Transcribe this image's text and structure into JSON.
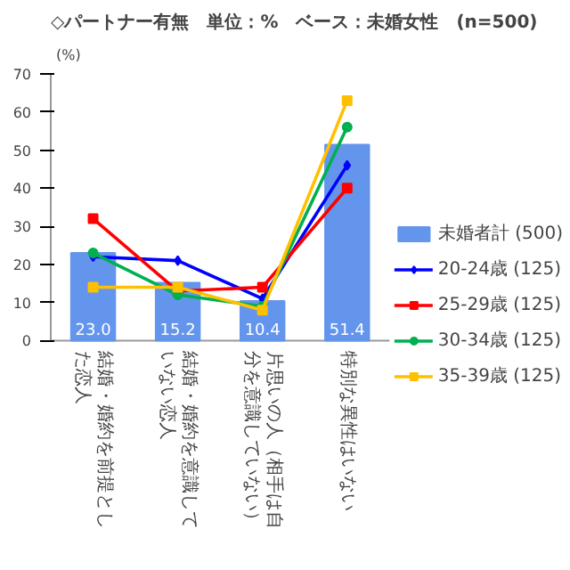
{
  "chart_data": {
    "type": "bar",
    "title": "◇パートナー有無　単位：%　ベース：未婚女性　(n=500)",
    "ylabel": "(%)",
    "categories": [
      "結婚・婚約を前提とした恋人",
      "結婚・婚約を意識していない恋人",
      "片思いの人（相手は自分を意識していない）",
      "特別な異性はいない"
    ],
    "series": [
      {
        "name": "未婚者計 (500)",
        "color": "#6495ed",
        "values": [
          23.0,
          15.2,
          10.4,
          51.4
        ],
        "value_labels": [
          "23.0",
          "15.2",
          "10.4",
          "51.4"
        ]
      },
      {
        "name": "20-24歳 (125)",
        "type": "line",
        "color": "#0000ff",
        "marker": "diamond",
        "values": [
          22,
          21,
          11,
          46
        ]
      },
      {
        "name": "25-29歳 (125)",
        "type": "line",
        "color": "#ff0000",
        "marker": "square",
        "values": [
          32,
          13,
          14,
          40
        ]
      },
      {
        "name": "30-34歳 (125)",
        "type": "line",
        "color": "#00b050",
        "marker": "circle",
        "values": [
          23,
          12,
          9,
          56
        ]
      },
      {
        "name": "35-39歳 (125)",
        "type": "line",
        "color": "#ffc000",
        "marker": "square",
        "values": [
          14,
          14,
          8,
          63
        ]
      }
    ],
    "ylim": [
      0,
      70
    ],
    "yticks": [
      0,
      10,
      20,
      30,
      40,
      50,
      60,
      70
    ],
    "legend": "right"
  }
}
